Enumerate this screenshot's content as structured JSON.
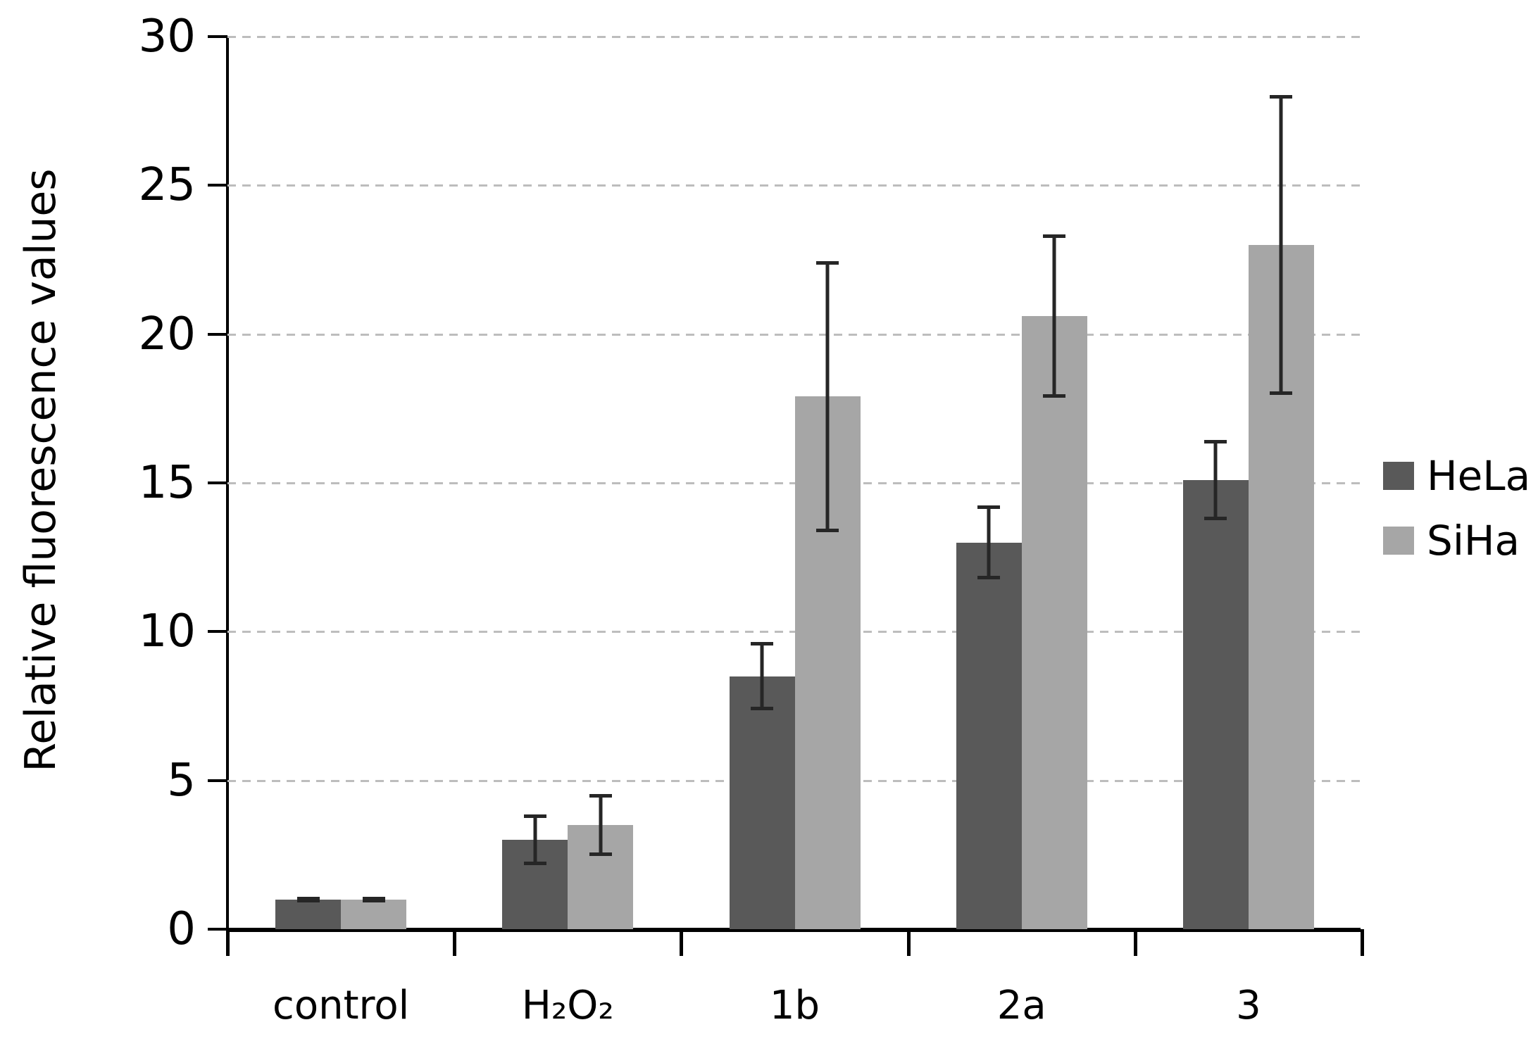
{
  "chart_data": {
    "type": "bar",
    "title": "",
    "xlabel": "",
    "ylabel": "Relative fluorescence values",
    "categories": [
      "control",
      "H₂O₂",
      "1b",
      "2a",
      "3"
    ],
    "y_ticks": [
      0,
      5,
      10,
      15,
      20,
      25,
      30
    ],
    "ylim": [
      0,
      30
    ],
    "grid": "horizontal-dashed",
    "gridline_color": "#bdbdbd",
    "axis_color": "#000000",
    "error_bar_color": "#262626",
    "legend_position": "right",
    "series": [
      {
        "name": "HeLa",
        "color": "#595959",
        "values": [
          1.0,
          3.0,
          8.5,
          13.0,
          15.1
        ],
        "errors": [
          0.05,
          0.8,
          1.1,
          1.2,
          1.3
        ]
      },
      {
        "name": "SiHa",
        "color": "#a6a6a6",
        "values": [
          1.0,
          3.5,
          17.9,
          20.6,
          23.0
        ],
        "errors": [
          0.05,
          1.0,
          4.5,
          2.7,
          5.0
        ]
      }
    ]
  }
}
